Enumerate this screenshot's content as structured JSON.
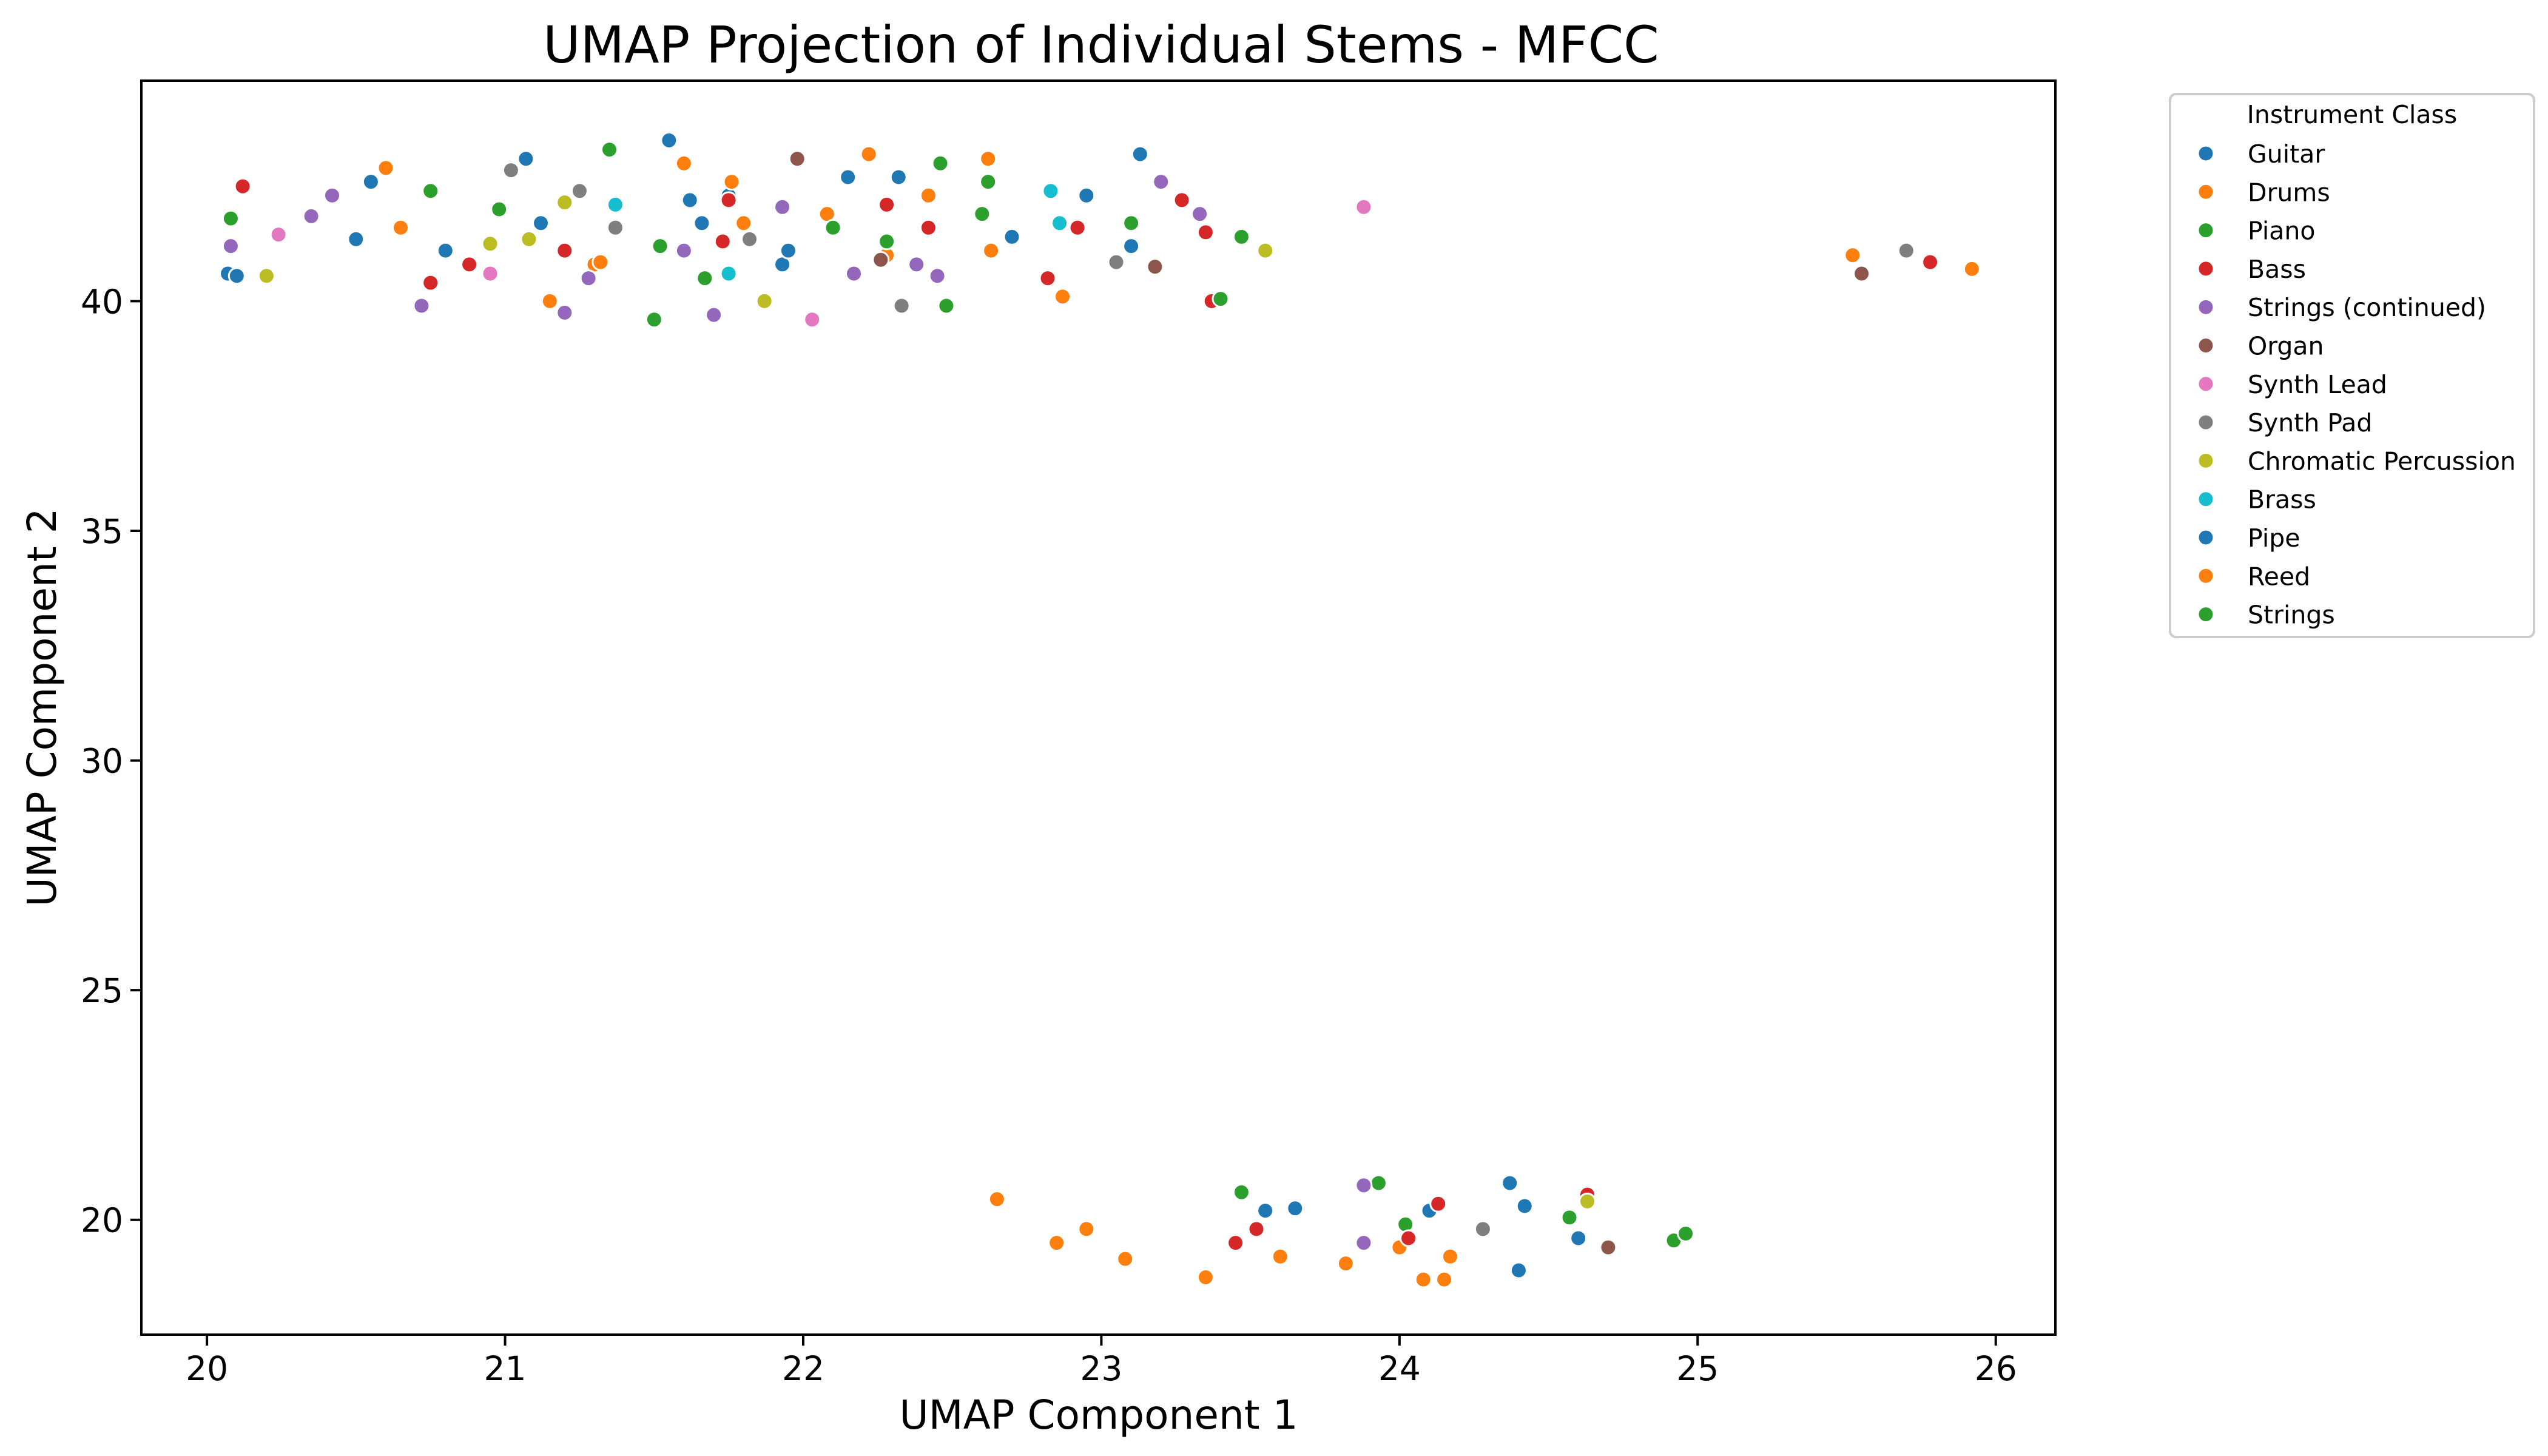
{
  "chart_data": {
    "type": "scatter",
    "title": "UMAP Projection of Individual Stems - MFCC",
    "xlabel": "UMAP Component 1",
    "ylabel": "UMAP Component 2",
    "xlim": [
      19.78,
      26.2
    ],
    "ylim": [
      17.5,
      44.8
    ],
    "xticks": [
      20,
      21,
      22,
      23,
      24,
      25,
      26
    ],
    "yticks": [
      20,
      25,
      30,
      35,
      40
    ],
    "grid": false,
    "legend_title": "Instrument Class",
    "legend_position": "outside-top-right",
    "series": [
      {
        "name": "Guitar",
        "color": "#1f77b4",
        "points": [
          [
            20.07,
            40.6
          ],
          [
            20.55,
            42.6
          ],
          [
            20.8,
            41.1
          ],
          [
            21.07,
            43.1
          ],
          [
            21.12,
            41.7
          ],
          [
            21.3,
            40.8
          ],
          [
            21.55,
            43.5
          ],
          [
            21.62,
            42.2
          ],
          [
            21.66,
            41.7
          ],
          [
            21.75,
            42.3
          ],
          [
            21.93,
            40.8
          ],
          [
            21.95,
            41.1
          ],
          [
            22.15,
            42.7
          ],
          [
            22.32,
            42.7
          ],
          [
            22.7,
            41.4
          ],
          [
            22.95,
            42.3
          ],
          [
            23.1,
            41.2
          ],
          [
            23.13,
            43.2
          ],
          [
            23.55,
            20.2
          ],
          [
            23.65,
            20.25
          ],
          [
            24.1,
            20.2
          ],
          [
            24.37,
            20.8
          ],
          [
            24.4,
            18.9
          ],
          [
            24.42,
            20.3
          ],
          [
            24.6,
            19.6
          ]
        ]
      },
      {
        "name": "Drums",
        "color": "#ff7f0e",
        "points": [
          [
            20.6,
            42.9
          ],
          [
            20.65,
            41.6
          ],
          [
            21.15,
            40.0
          ],
          [
            21.3,
            40.8
          ],
          [
            21.6,
            43.0
          ],
          [
            21.76,
            42.6
          ],
          [
            21.8,
            41.7
          ],
          [
            22.08,
            41.9
          ],
          [
            22.22,
            43.2
          ],
          [
            22.28,
            41.0
          ],
          [
            22.42,
            42.3
          ],
          [
            22.62,
            43.1
          ],
          [
            22.63,
            41.1
          ],
          [
            22.87,
            40.1
          ],
          [
            22.65,
            20.45
          ],
          [
            22.85,
            19.5
          ],
          [
            22.95,
            19.8
          ],
          [
            23.08,
            19.15
          ],
          [
            23.35,
            18.75
          ],
          [
            23.6,
            19.2
          ],
          [
            23.82,
            19.05
          ],
          [
            24.0,
            19.4
          ],
          [
            24.08,
            18.7
          ],
          [
            24.15,
            18.7
          ],
          [
            24.17,
            19.2
          ],
          [
            25.52,
            41.0
          ],
          [
            25.92,
            40.7
          ]
        ]
      },
      {
        "name": "Piano",
        "color": "#2ca02c",
        "points": [
          [
            20.08,
            41.8
          ],
          [
            20.75,
            42.4
          ],
          [
            20.98,
            42.0
          ],
          [
            21.35,
            43.3
          ],
          [
            21.5,
            39.6
          ],
          [
            21.52,
            41.2
          ],
          [
            21.67,
            40.5
          ],
          [
            22.1,
            41.6
          ],
          [
            22.28,
            41.3
          ],
          [
            22.46,
            43.0
          ],
          [
            22.48,
            39.9
          ],
          [
            22.6,
            41.9
          ],
          [
            22.62,
            42.6
          ],
          [
            23.1,
            41.7
          ],
          [
            23.38,
            40.0
          ],
          [
            23.47,
            41.4
          ],
          [
            23.47,
            20.6
          ],
          [
            23.93,
            20.8
          ],
          [
            24.02,
            19.9
          ],
          [
            24.57,
            20.05
          ],
          [
            24.92,
            19.55
          ],
          [
            24.96,
            19.7
          ]
        ]
      },
      {
        "name": "Bass",
        "color": "#d62728",
        "points": [
          [
            20.12,
            42.5
          ],
          [
            20.75,
            40.4
          ],
          [
            20.88,
            40.8
          ],
          [
            21.2,
            41.1
          ],
          [
            21.73,
            41.3
          ],
          [
            21.75,
            42.2
          ],
          [
            22.28,
            42.1
          ],
          [
            22.42,
            41.6
          ],
          [
            22.82,
            40.5
          ],
          [
            22.92,
            41.6
          ],
          [
            23.27,
            42.2
          ],
          [
            23.35,
            41.5
          ],
          [
            23.37,
            40.0
          ],
          [
            23.45,
            19.5
          ],
          [
            23.52,
            19.8
          ],
          [
            24.03,
            19.6
          ],
          [
            24.13,
            20.35
          ],
          [
            24.63,
            20.55
          ],
          [
            25.78,
            40.85
          ]
        ]
      },
      {
        "name": "Strings (continued)",
        "color": "#9467bd",
        "points": [
          [
            20.08,
            41.2
          ],
          [
            20.35,
            41.85
          ],
          [
            20.42,
            42.3
          ],
          [
            20.72,
            39.9
          ],
          [
            21.2,
            39.75
          ],
          [
            21.28,
            40.5
          ],
          [
            21.6,
            41.1
          ],
          [
            21.7,
            39.7
          ],
          [
            21.93,
            42.05
          ],
          [
            22.17,
            40.6
          ],
          [
            22.38,
            40.8
          ],
          [
            22.45,
            40.55
          ],
          [
            23.2,
            42.6
          ],
          [
            23.33,
            41.9
          ],
          [
            23.88,
            20.75
          ],
          [
            23.88,
            19.5
          ]
        ]
      },
      {
        "name": "Organ",
        "color": "#8c564b",
        "points": [
          [
            21.98,
            43.1
          ],
          [
            22.26,
            40.9
          ],
          [
            23.18,
            40.75
          ],
          [
            24.7,
            19.4
          ],
          [
            25.55,
            40.6
          ]
        ]
      },
      {
        "name": "Synth Lead",
        "color": "#e377c2",
        "points": [
          [
            20.24,
            41.45
          ],
          [
            20.95,
            40.6
          ],
          [
            22.03,
            39.6
          ],
          [
            23.88,
            42.05
          ]
        ]
      },
      {
        "name": "Synth Pad",
        "color": "#7f7f7f",
        "points": [
          [
            21.02,
            42.85
          ],
          [
            21.25,
            42.4
          ],
          [
            21.37,
            41.6
          ],
          [
            21.82,
            41.35
          ],
          [
            22.33,
            39.9
          ],
          [
            23.05,
            40.85
          ],
          [
            24.28,
            19.8
          ],
          [
            25.7,
            41.1
          ]
        ]
      },
      {
        "name": "Chromatic Percussion",
        "color": "#bcbd22",
        "points": [
          [
            20.2,
            40.55
          ],
          [
            20.95,
            41.25
          ],
          [
            21.08,
            41.35
          ],
          [
            21.2,
            42.15
          ],
          [
            21.87,
            40.0
          ],
          [
            23.55,
            41.1
          ],
          [
            24.63,
            20.4
          ]
        ]
      },
      {
        "name": "Brass",
        "color": "#17becf",
        "points": [
          [
            21.37,
            42.1
          ],
          [
            21.75,
            40.6
          ],
          [
            22.83,
            42.4
          ],
          [
            22.86,
            41.7
          ]
        ]
      },
      {
        "name": "Pipe",
        "color": "#1f77b4",
        "points": [
          [
            20.5,
            41.35
          ],
          [
            20.1,
            40.55
          ]
        ]
      },
      {
        "name": "Reed",
        "color": "#ff7f0e",
        "points": [
          [
            21.32,
            40.85
          ]
        ]
      },
      {
        "name": "Strings",
        "color": "#2ca02c",
        "points": [
          [
            23.4,
            40.05
          ]
        ]
      }
    ]
  }
}
